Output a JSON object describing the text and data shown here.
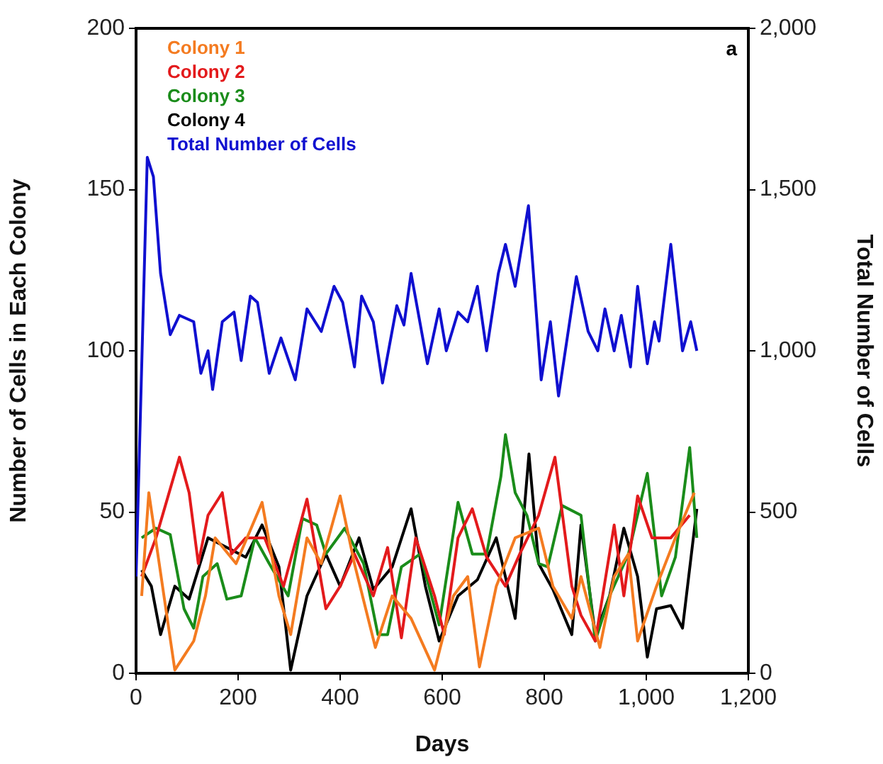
{
  "chart_data": {
    "type": "line",
    "xlabel": "Days",
    "ylabel": "Number of Cells in Each Colony",
    "y2label": "Total Number of Cells",
    "annotations": [
      "a"
    ],
    "xlim": [
      0,
      1200
    ],
    "xticks": [
      0,
      200,
      400,
      600,
      800,
      {
        "value": 1000,
        "label": "1,000"
      },
      {
        "value": 1200,
        "label": "1,200"
      }
    ],
    "ylim": [
      0,
      200
    ],
    "yticks": [
      0,
      50,
      100,
      150,
      200
    ],
    "y2lim": [
      0,
      2000
    ],
    "y2ticks": [
      0,
      500,
      {
        "value": 1000,
        "label": "1,000"
      },
      {
        "value": 1500,
        "label": "1,500"
      },
      {
        "value": 2000,
        "label": "2,000"
      }
    ],
    "grid": false,
    "legend": "top left",
    "marker": "none",
    "line_style": "solid",
    "series": [
      {
        "name": "Colony 1",
        "color": "#f47b20",
        "x": [
          11,
          25,
          76,
          113,
          136,
          155,
          196,
          247,
          280,
          303,
          335,
          363,
          400,
          428,
          469,
          502,
          539,
          585,
          622,
          650,
          673,
          706,
          743,
          789,
          817,
          854,
          872,
          909,
          937,
          965,
          983,
          1020,
          1057,
          1094
        ],
        "values": [
          24,
          56,
          1,
          10,
          24,
          42,
          34,
          53,
          24,
          12,
          42,
          34,
          55,
          34,
          8,
          24,
          17,
          1,
          24,
          30,
          2,
          27,
          42,
          45,
          27,
          17,
          30,
          8,
          30,
          37,
          10,
          27,
          42,
          56
        ]
      },
      {
        "name": "Colony 2",
        "color": "#e31a1c",
        "x": [
          11,
          39,
          85,
          104,
          122,
          141,
          169,
          187,
          215,
          252,
          289,
          335,
          372,
          400,
          428,
          465,
          493,
          520,
          548,
          585,
          604,
          631,
          659,
          687,
          724,
          752,
          789,
          821,
          854,
          872,
          900,
          937,
          956,
          983,
          1011,
          1048,
          1085
        ],
        "values": [
          30,
          42,
          67,
          56,
          34,
          49,
          56,
          37,
          42,
          42,
          27,
          54,
          20,
          27,
          37,
          24,
          39,
          11,
          42,
          24,
          12,
          42,
          51,
          36,
          27,
          37,
          49,
          67,
          27,
          18,
          10,
          46,
          24,
          55,
          42,
          42,
          49
        ]
      },
      {
        "name": "Colony 3",
        "color": "#1a8c1a",
        "x": [
          11,
          39,
          67,
          94,
          113,
          131,
          159,
          178,
          206,
          233,
          261,
          298,
          326,
          354,
          372,
          409,
          446,
          474,
          493,
          520,
          557,
          594,
          631,
          659,
          687,
          715,
          724,
          743,
          766,
          789,
          807,
          835,
          872,
          900,
          928,
          965,
          1002,
          1030,
          1057,
          1085,
          1099
        ],
        "values": [
          42,
          45,
          43,
          20,
          14,
          30,
          34,
          23,
          24,
          42,
          34,
          24,
          48,
          46,
          37,
          45,
          34,
          12,
          12,
          33,
          37,
          15,
          53,
          37,
          37,
          61,
          74,
          56,
          49,
          34,
          33,
          52,
          49,
          10,
          24,
          37,
          62,
          24,
          36,
          70,
          42
        ]
      },
      {
        "name": "Colony 4",
        "color": "#000000",
        "x": [
          11,
          30,
          48,
          76,
          104,
          141,
          178,
          215,
          247,
          280,
          303,
          335,
          372,
          400,
          437,
          465,
          502,
          539,
          567,
          594,
          631,
          669,
          706,
          743,
          770,
          789,
          817,
          854,
          872,
          900,
          928,
          956,
          983,
          1002,
          1020,
          1048,
          1071,
          1099
        ],
        "values": [
          32,
          27,
          12,
          27,
          23,
          42,
          39,
          36,
          46,
          33,
          1,
          24,
          37,
          27,
          42,
          26,
          33,
          51,
          27,
          10,
          24,
          29,
          42,
          17,
          68,
          34,
          26,
          12,
          46,
          12,
          24,
          45,
          30,
          5,
          20,
          21,
          14,
          51
        ]
      },
      {
        "name": "Total Number of Cells",
        "color": "#1010d0",
        "axis": "y2",
        "x": [
          0,
          22,
          34,
          48,
          67,
          85,
          113,
          127,
          141,
          150,
          169,
          192,
          206,
          224,
          238,
          261,
          284,
          312,
          335,
          363,
          388,
          405,
          428,
          442,
          465,
          483,
          511,
          525,
          539,
          571,
          594,
          608,
          631,
          650,
          669,
          687,
          710,
          724,
          743,
          769,
          794,
          812,
          828,
          863,
          886,
          905,
          919,
          937,
          951,
          969,
          983,
          1002,
          1016,
          1025,
          1048,
          1071,
          1087,
          1099
        ],
        "values": [
          300,
          1600,
          1540,
          1240,
          1050,
          1110,
          1090,
          930,
          1000,
          880,
          1090,
          1120,
          970,
          1170,
          1150,
          930,
          1040,
          910,
          1130,
          1060,
          1200,
          1150,
          950,
          1170,
          1090,
          900,
          1140,
          1080,
          1240,
          960,
          1130,
          1000,
          1120,
          1090,
          1200,
          1000,
          1240,
          1330,
          1200,
          1450,
          910,
          1090,
          860,
          1230,
          1060,
          1000,
          1130,
          1000,
          1110,
          950,
          1200,
          960,
          1090,
          1030,
          1330,
          1000,
          1090,
          1000
        ]
      }
    ]
  }
}
